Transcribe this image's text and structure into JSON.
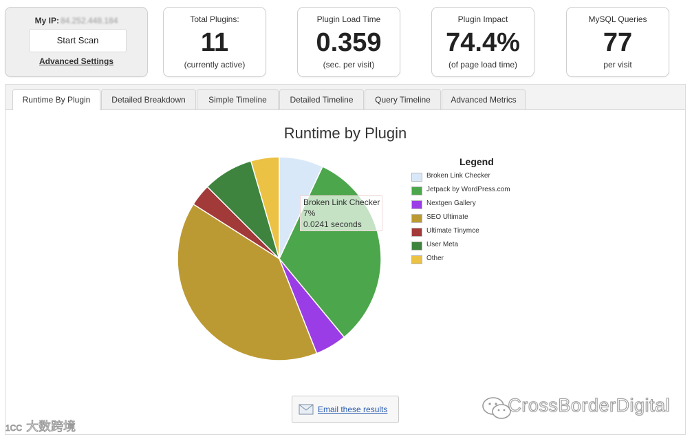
{
  "summary": {
    "ip_label": "My IP:",
    "ip_value": "84.252.448.184",
    "scan_button": "Start Scan",
    "advanced_settings": "Advanced Settings"
  },
  "stats": [
    {
      "label": "Total Plugins:",
      "value": "11",
      "sub": "(currently active)"
    },
    {
      "label": "Plugin Load Time",
      "value": "0.359",
      "sub": "(sec. per visit)"
    },
    {
      "label": "Plugin Impact",
      "value": "74.4%",
      "sub": "(of page load time)"
    },
    {
      "label": "MySQL Queries",
      "value": "77",
      "sub": "per visit"
    }
  ],
  "tabs": [
    {
      "label": "Runtime By Plugin",
      "active": true
    },
    {
      "label": "Detailed Breakdown",
      "active": false
    },
    {
      "label": "Simple Timeline",
      "active": false
    },
    {
      "label": "Detailed Timeline",
      "active": false
    },
    {
      "label": "Query Timeline",
      "active": false
    },
    {
      "label": "Advanced Metrics",
      "active": false
    }
  ],
  "chart_data": {
    "type": "pie",
    "title": "Runtime by Plugin",
    "legend_title": "Legend",
    "legend_position": "right",
    "slices": [
      {
        "name": "Broken Link Checker",
        "percent": 7,
        "color": "#d9e8f8"
      },
      {
        "name": "Jetpack by WordPress.com",
        "percent": 32,
        "color": "#4ca64c"
      },
      {
        "name": "Nextgen Gallery",
        "percent": 5,
        "color": "#9b3de6"
      },
      {
        "name": "SEO Ultimate",
        "percent": 40,
        "color": "#bc9a33"
      },
      {
        "name": "Ultimate Tinymce",
        "percent": 3.5,
        "color": "#a33a3a"
      },
      {
        "name": "User Meta",
        "percent": 8,
        "color": "#3e843e"
      },
      {
        "name": "Other",
        "percent": 4.5,
        "color": "#ecc245"
      }
    ],
    "tooltip": {
      "name": "Broken Link Checker",
      "percent": "7%",
      "value": "0.0241 seconds"
    }
  },
  "email_button": "Email these results",
  "watermark": "CrossBorderDigital",
  "watermark_small": "大数跨境",
  "watermark_tag": "1CC"
}
